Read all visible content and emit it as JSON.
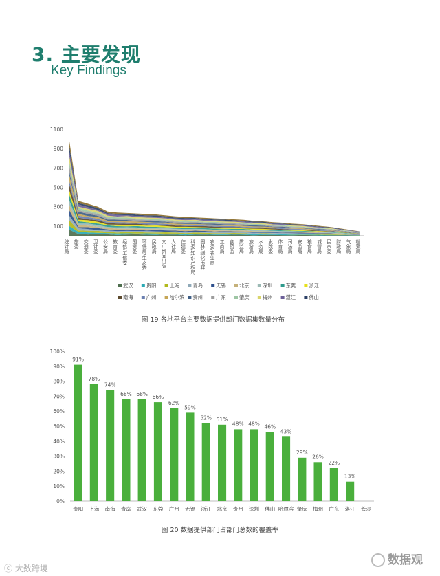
{
  "header": {
    "title_cn": "3. 主要发现",
    "title_en": "Key Findings"
  },
  "watermarks": {
    "left": "大数跨境",
    "right": "数据观"
  },
  "chart_data": [
    {
      "type": "area",
      "caption": "图 19  各地平台主要数据提供部门数据集数量分布",
      "ylim": [
        0,
        1100
      ],
      "yticks": [
        100,
        300,
        500,
        700,
        900,
        1100
      ],
      "categories": [
        "统计局",
        "旅委",
        "交通委",
        "卫计委",
        "公安局",
        "教育委",
        "经信/工信委",
        "国资委",
        "环保局/生态委",
        "民政局",
        "文广新闻出版",
        "人社局",
        "住建委",
        "科委/知识产权局",
        "园林/绿化市容",
        "农委/农业局",
        "工商局",
        "食药监",
        "质监局",
        "旅游局",
        "水务局",
        "发改委",
        "体育局",
        "司法局",
        "安监局",
        "粮食局",
        "城管局",
        "民宗委",
        "财政局",
        "气象局",
        "档案局"
      ],
      "series_colors": [
        "#4f6f4f",
        "#2aa9b4",
        "#b1b91c",
        "#8fa9b8",
        "#2d4f8c",
        "#c5b17a",
        "#9bb9b4",
        "#2e9a8c",
        "#e6e01a",
        "#5c4a2e",
        "#6a7fb0",
        "#c6a657",
        "#3f5f86",
        "#9c9c9c",
        "#9ec6a4",
        "#d9d56b",
        "#6c5f98",
        "#2b4066",
        "#8a6c2a"
      ],
      "totals": [
        1020,
        360,
        330,
        300,
        250,
        240,
        235,
        230,
        225,
        220,
        210,
        200,
        195,
        190,
        185,
        180,
        175,
        170,
        165,
        155,
        150,
        140,
        135,
        125,
        120,
        110,
        100,
        90,
        75,
        60,
        45
      ],
      "legend": [
        "武汉",
        "贵阳",
        "上海",
        "青岛",
        "无锡",
        "北京",
        "深圳",
        "东莞",
        "浙江",
        "南海",
        "广州",
        "哈尔滨",
        "贵州",
        "广东",
        "肇庆",
        "梅州",
        "湛江",
        "佛山"
      ]
    },
    {
      "type": "bar",
      "caption": "图 20  数据提供部门占部门总数的覆盖率",
      "ylim": [
        0,
        100
      ],
      "yticks": [
        "0%",
        "10%",
        "20%",
        "30%",
        "40%",
        "50%",
        "60%",
        "70%",
        "80%",
        "90%",
        "100%"
      ],
      "categories": [
        "贵阳",
        "上海",
        "南海",
        "青岛",
        "武汉",
        "东莞",
        "广州",
        "无锡",
        "浙江",
        "北京",
        "贵州",
        "深圳",
        "佛山",
        "哈尔滨",
        "肇庆",
        "梅州",
        "广东",
        "湛江",
        "长沙"
      ],
      "values": [
        91,
        78,
        74,
        68,
        68,
        66,
        62,
        59,
        52,
        51,
        48,
        48,
        46,
        43,
        29,
        26,
        22,
        13,
        0
      ],
      "data_labels": [
        "91%",
        "78%",
        "74%",
        "68%",
        "68%",
        "66%",
        "62%",
        "59%",
        "52%",
        "51%",
        "48%",
        "48%",
        "46%",
        "43%",
        "29%",
        "26%",
        "22%",
        "13%",
        ""
      ],
      "bar_color": "#4aaf3c"
    }
  ]
}
